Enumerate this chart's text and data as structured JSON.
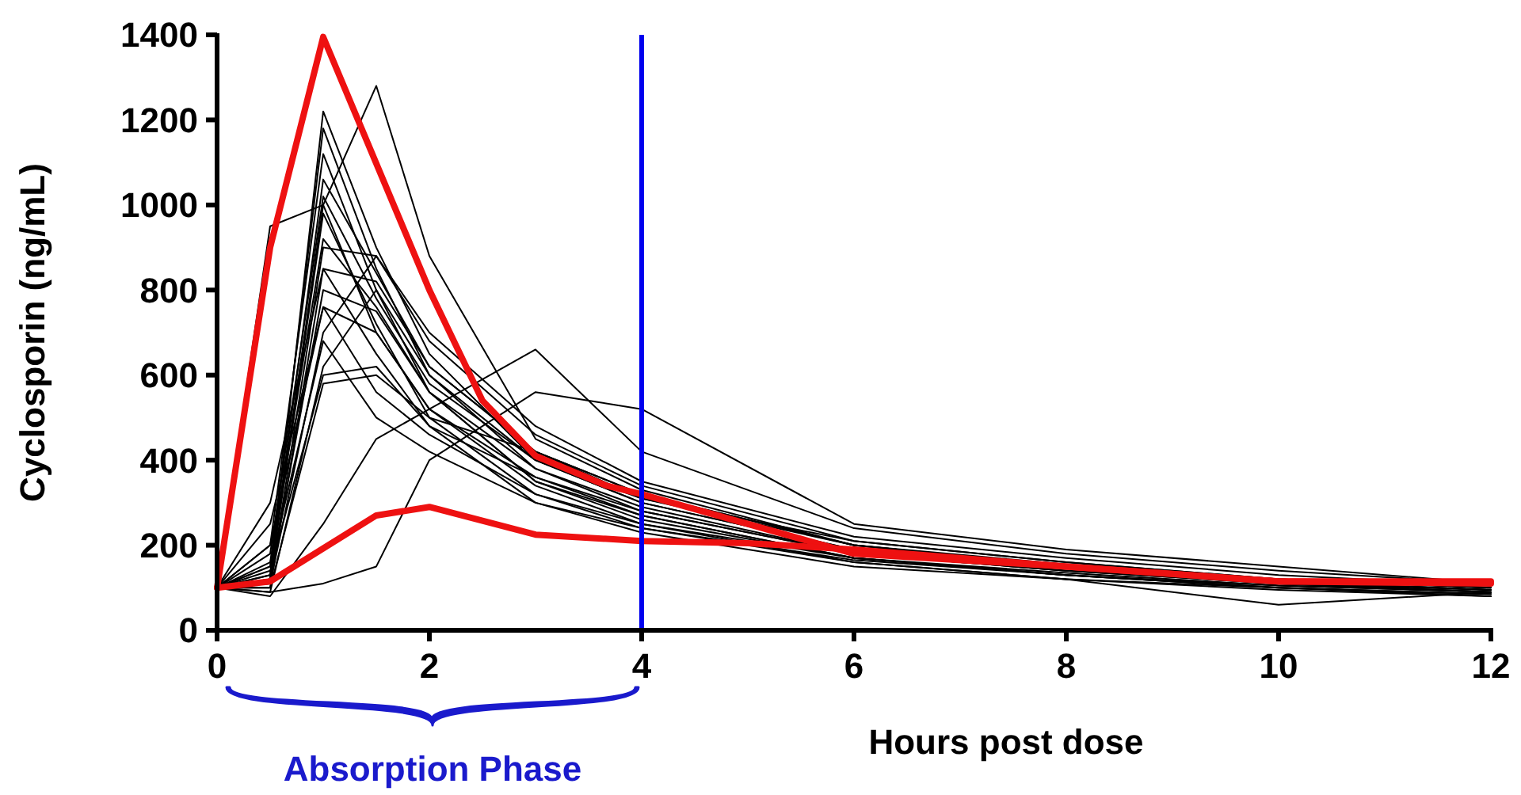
{
  "chart_data": {
    "type": "line",
    "xlabel": "Hours post dose",
    "ylabel": "Cyclosporin (ng/mL)",
    "xlim": [
      0,
      12
    ],
    "ylim": [
      0,
      1400
    ],
    "xticks": [
      0,
      2,
      4,
      6,
      8,
      10,
      12
    ],
    "yticks": [
      0,
      200,
      400,
      600,
      800,
      1000,
      1200,
      1400
    ],
    "grid": false,
    "marker": "none",
    "line_style": "solid",
    "x": [
      0,
      0.5,
      1,
      1.5,
      2,
      3,
      4,
      6,
      8,
      10,
      12
    ],
    "series": [
      {
        "color": "#000000",
        "values": [
          100,
          120,
          1220,
          900,
          650,
          400,
          300,
          190,
          150,
          120,
          100
        ]
      },
      {
        "color": "#000000",
        "values": [
          100,
          150,
          1180,
          850,
          600,
          380,
          280,
          180,
          140,
          110,
          90
        ]
      },
      {
        "color": "#000000",
        "values": [
          100,
          200,
          1120,
          800,
          560,
          350,
          260,
          170,
          130,
          100,
          80
        ]
      },
      {
        "color": "#000000",
        "values": [
          100,
          130,
          1000,
          1280,
          880,
          450,
          330,
          200,
          150,
          115,
          95
        ]
      },
      {
        "color": "#000000",
        "values": [
          100,
          950,
          1000,
          700,
          520,
          360,
          270,
          170,
          130,
          100,
          85
        ]
      },
      {
        "color": "#000000",
        "values": [
          100,
          180,
          1020,
          780,
          580,
          400,
          310,
          210,
          160,
          120,
          100
        ]
      },
      {
        "color": "#000000",
        "values": [
          100,
          120,
          980,
          720,
          500,
          320,
          240,
          160,
          120,
          60,
          90
        ]
      },
      {
        "color": "#000000",
        "values": [
          100,
          110,
          900,
          880,
          700,
          480,
          350,
          220,
          170,
          130,
          105
        ]
      },
      {
        "color": "#000000",
        "values": [
          100,
          300,
          850,
          820,
          620,
          420,
          320,
          200,
          150,
          115,
          95
        ]
      },
      {
        "color": "#000000",
        "values": [
          100,
          120,
          800,
          750,
          560,
          380,
          290,
          180,
          140,
          110,
          90
        ]
      },
      {
        "color": "#000000",
        "values": [
          100,
          250,
          760,
          700,
          520,
          340,
          250,
          160,
          120,
          95,
          80
        ]
      },
      {
        "color": "#000000",
        "values": [
          100,
          110,
          700,
          880,
          680,
          460,
          340,
          210,
          160,
          120,
          100
        ]
      },
      {
        "color": "#000000",
        "values": [
          100,
          90,
          620,
          800,
          600,
          400,
          300,
          190,
          145,
          110,
          90
        ]
      },
      {
        "color": "#000000",
        "values": [
          100,
          140,
          600,
          620,
          480,
          360,
          280,
          180,
          140,
          110,
          95
        ]
      },
      {
        "color": "#000000",
        "values": [
          100,
          100,
          580,
          600,
          500,
          420,
          320,
          200,
          150,
          115,
          95
        ]
      },
      {
        "color": "#000000",
        "values": [
          100,
          80,
          250,
          450,
          520,
          660,
          420,
          240,
          180,
          140,
          110
        ]
      },
      {
        "color": "#000000",
        "values": [
          100,
          90,
          110,
          150,
          400,
          560,
          520,
          250,
          190,
          150,
          110
        ]
      },
      {
        "color": "#000000",
        "values": [
          100,
          100,
          850,
          650,
          480,
          300,
          230,
          150,
          120,
          100,
          85
        ]
      },
      {
        "color": "#000000",
        "values": [
          100,
          160,
          920,
          760,
          560,
          350,
          270,
          170,
          130,
          105,
          90
        ]
      },
      {
        "color": "#000000",
        "values": [
          100,
          130,
          1060,
          840,
          620,
          420,
          310,
          200,
          155,
          120,
          100
        ]
      },
      {
        "color": "#000000",
        "values": [
          100,
          200,
          760,
          560,
          460,
          320,
          250,
          170,
          135,
          105,
          90
        ]
      },
      {
        "color": "#000000",
        "values": [
          100,
          150,
          680,
          500,
          420,
          300,
          240,
          165,
          130,
          100,
          85
        ]
      },
      {
        "color": "#ee1111",
        "x": [
          0,
          0.5,
          1,
          2,
          2.5,
          3,
          3.67,
          4,
          6,
          8,
          10,
          12
        ],
        "values": [
          100,
          900,
          1395,
          800,
          540,
          410,
          340,
          320,
          180,
          150,
          115,
          115
        ]
      },
      {
        "color": "#ee1111",
        "x": [
          0,
          0.5,
          1.5,
          2,
          3,
          4,
          5,
          6,
          8,
          10,
          12
        ],
        "values": [
          100,
          115,
          270,
          290,
          225,
          210,
          205,
          190,
          150,
          115,
          110
        ]
      }
    ],
    "ref_lines": [
      {
        "axis": "x",
        "value": 4,
        "color": "#0000ee"
      }
    ],
    "annotations": [
      "Absorption Phase"
    ]
  }
}
